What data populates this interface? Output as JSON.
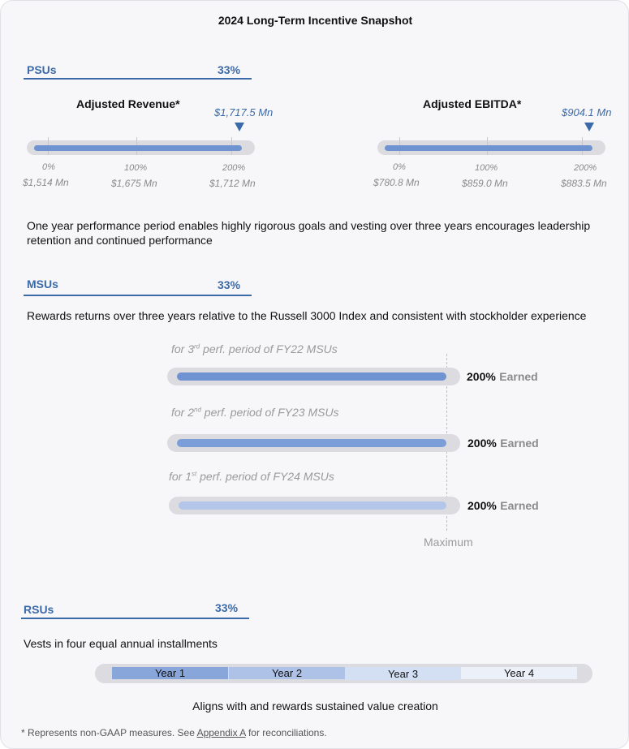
{
  "title": "2024 Long-Term Incentive Snapshot",
  "psus": {
    "label": "PSUs",
    "pct": "33%",
    "metrics": [
      {
        "title": "Adjusted Revenue*",
        "actual": "$1,717.5 Mn",
        "progress_pct": 100,
        "ticks": [
          {
            "pct": "0%",
            "value": "$1,514 Mn"
          },
          {
            "pct": "100%",
            "value": "$1,675 Mn"
          },
          {
            "pct": "200%",
            "value": "$1,712 Mn"
          }
        ]
      },
      {
        "title": "Adjusted EBITDA*",
        "actual": "$904.1 Mn",
        "progress_pct": 100,
        "ticks": [
          {
            "pct": "0%",
            "value": "$780.8 Mn"
          },
          {
            "pct": "100%",
            "value": "$859.0 Mn"
          },
          {
            "pct": "200%",
            "value": "$883.5 Mn"
          }
        ]
      }
    ],
    "description": "One year performance period enables highly rigorous goals and vesting over three years encourages leadership retention and continued performance"
  },
  "msus": {
    "label": "MSUs",
    "pct": "33%",
    "description": "Rewards returns over three years relative to the Russell 3000 Index and consistent with stockholder experience",
    "periods": [
      {
        "prefix": "for 3",
        "sup": "rd",
        "suffix": " perf. period of FY22 MSUs",
        "earned_pct": "200%",
        "earned_word": "Earned",
        "color": "#6f93d0"
      },
      {
        "prefix": "for 2",
        "sup": "nd",
        "suffix": " perf. period of FY23 MSUs",
        "earned_pct": "200%",
        "earned_word": "Earned",
        "color": "#7b9ed8"
      },
      {
        "prefix": "for 1",
        "sup": "st",
        "suffix": " perf. period of FY24 MSUs",
        "earned_pct": "200%",
        "earned_word": "Earned",
        "color": "#b3c6ea"
      }
    ],
    "max_label": "Maximum"
  },
  "rsus": {
    "label": "RSUs",
    "pct": "33%",
    "description": "Vests in four equal annual installments",
    "years": [
      {
        "label": "Year 1",
        "color": "#89a6da"
      },
      {
        "label": "Year 2",
        "color": "#aec2e8"
      },
      {
        "label": "Year 3",
        "color": "#d3dff3"
      },
      {
        "label": "Year 4",
        "color": "#ebf0f9"
      }
    ],
    "caption": "Aligns with and rewards sustained value creation"
  },
  "footnote": {
    "prefix": "* Represents non-GAAP measures.  See ",
    "link": "Appendix A",
    "suffix": " for reconciliations."
  }
}
